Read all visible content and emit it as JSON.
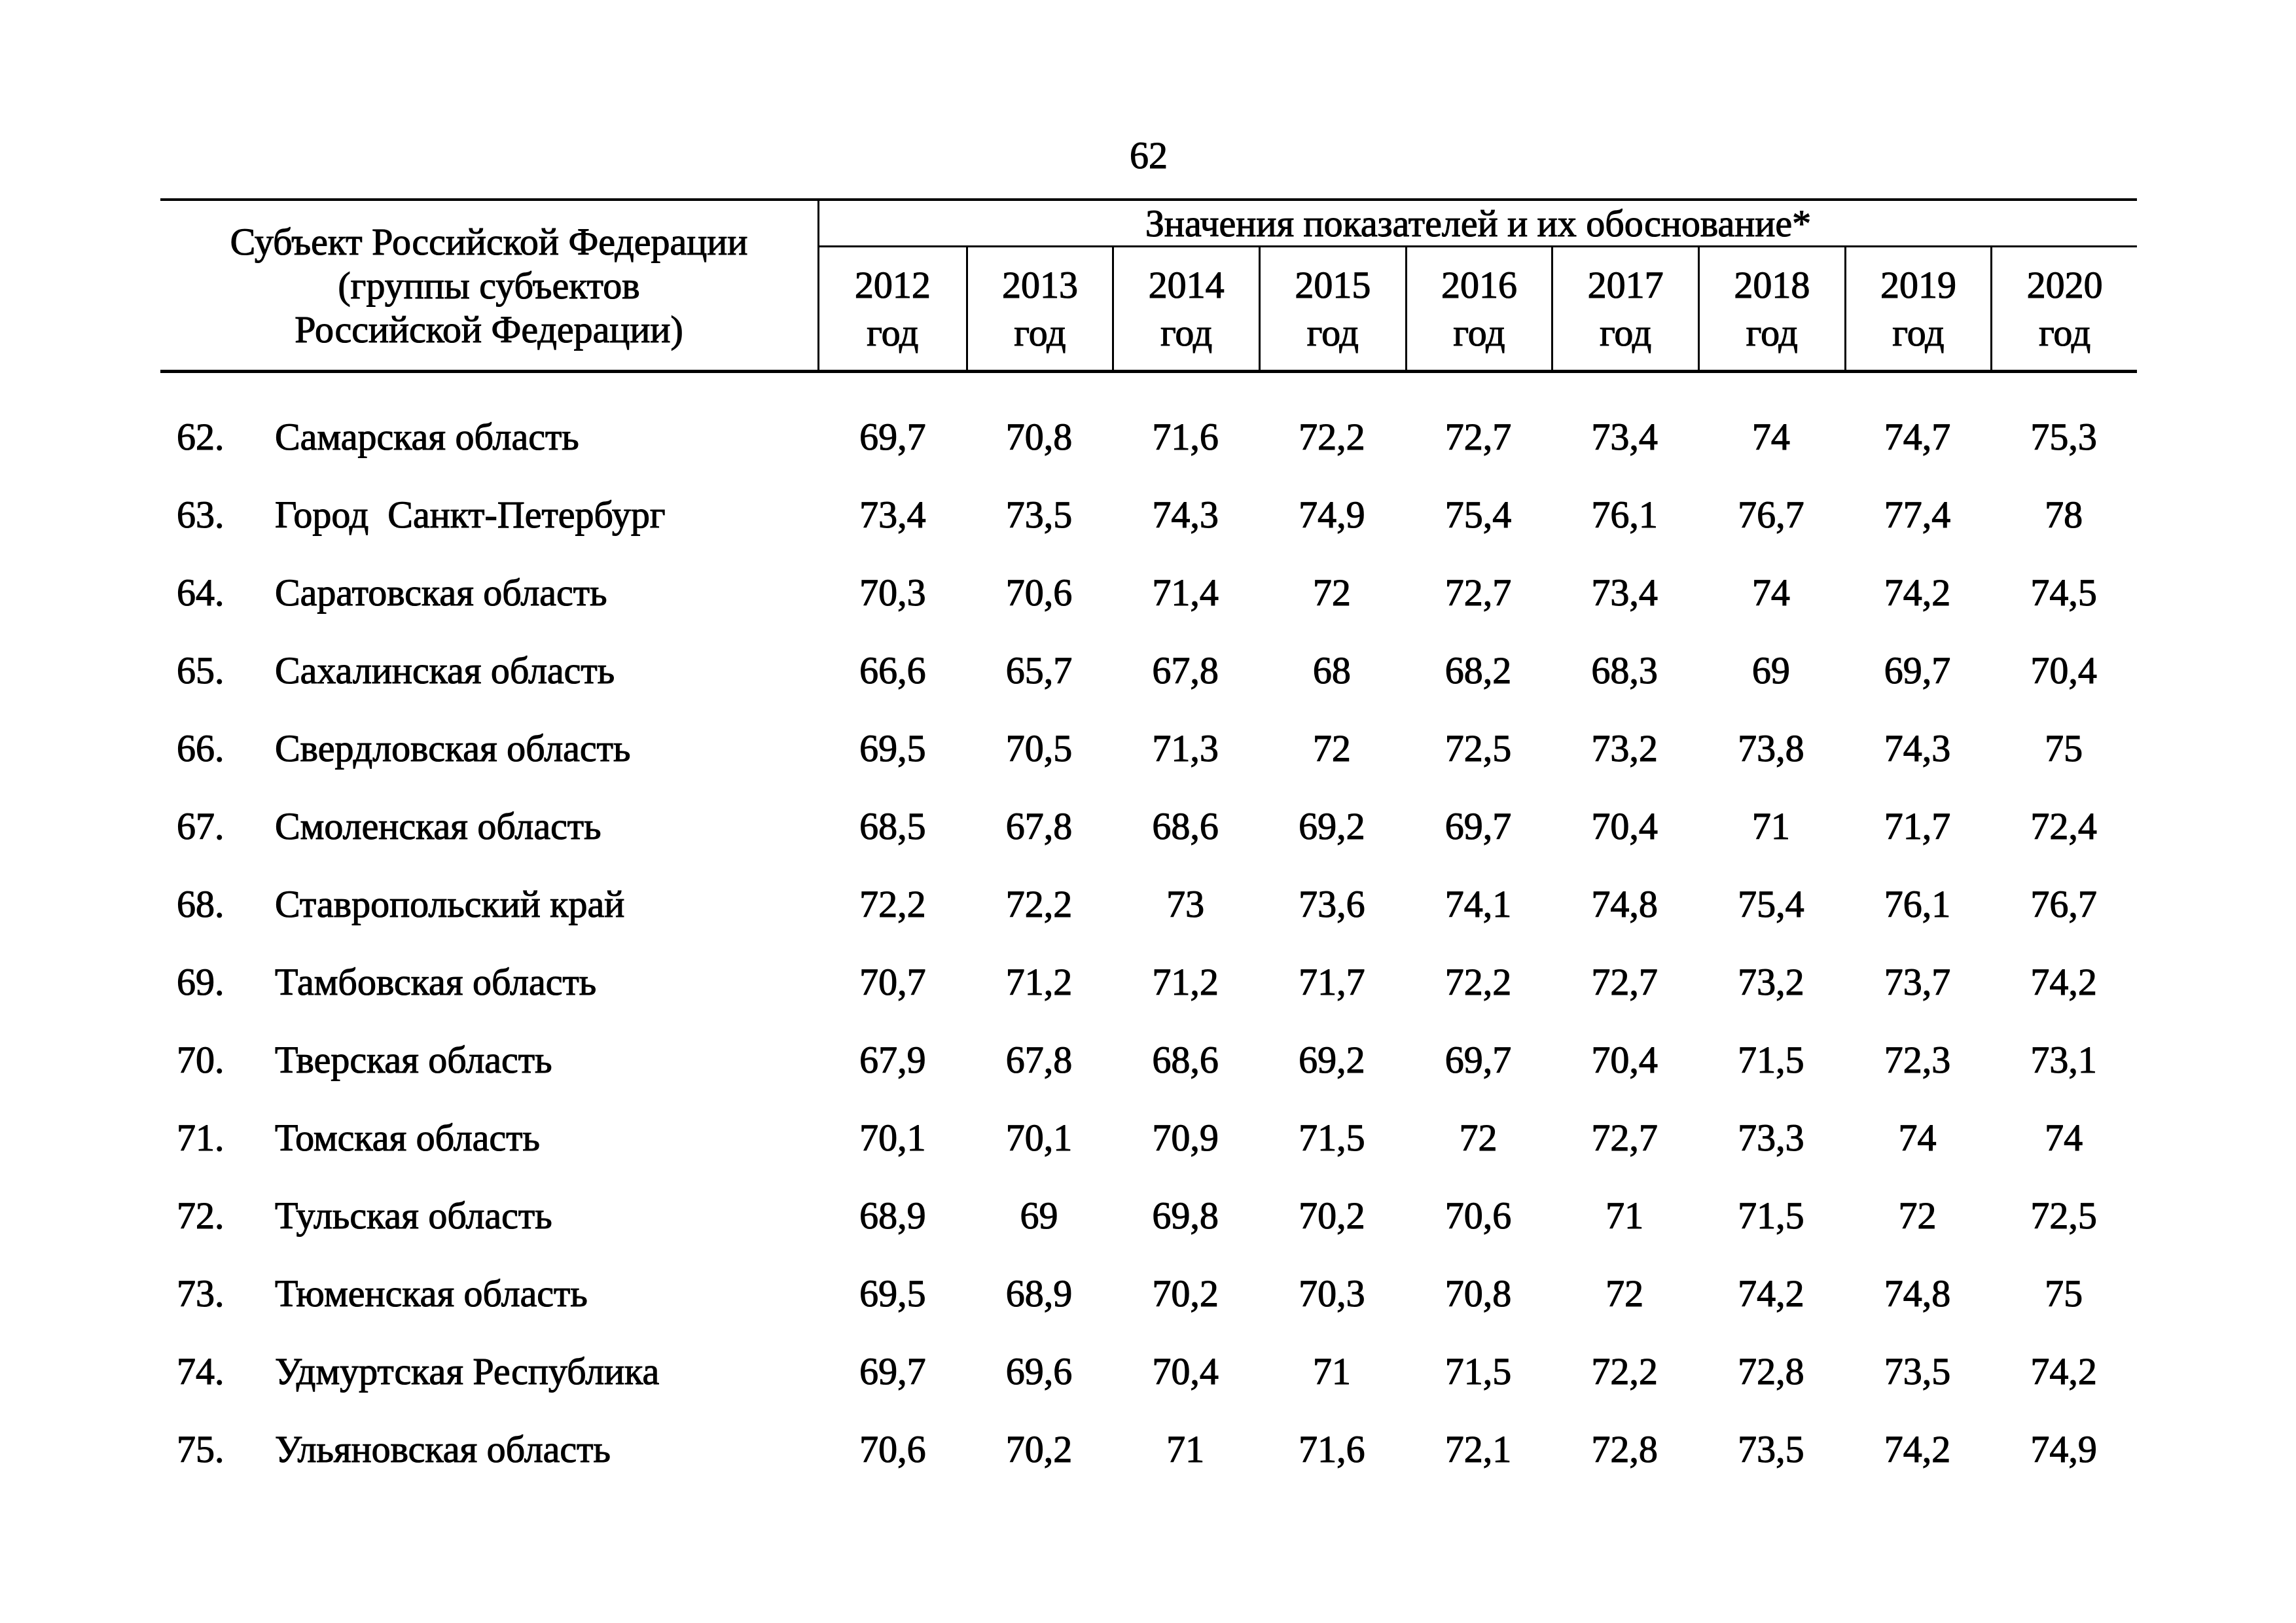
{
  "page": {
    "number": "62"
  },
  "table": {
    "header": {
      "subject_lines": [
        "Субъект Российской Федерации",
        "(группы субъектов",
        "Российской Федерации)"
      ],
      "values_span": "Значения показателей и их обоснование*",
      "year_suffix": "год",
      "years": [
        "2012",
        "2013",
        "2014",
        "2015",
        "2016",
        "2017",
        "2018",
        "2019",
        "2020"
      ]
    },
    "rows": [
      {
        "num": "62.",
        "name": "Самарская область",
        "values": [
          "69,7",
          "70,8",
          "71,6",
          "72,2",
          "72,7",
          "73,4",
          "74",
          "74,7",
          "75,3"
        ]
      },
      {
        "num": "63.",
        "name": "Город  Санкт-Петербург",
        "values": [
          "73,4",
          "73,5",
          "74,3",
          "74,9",
          "75,4",
          "76,1",
          "76,7",
          "77,4",
          "78"
        ]
      },
      {
        "num": "64.",
        "name": "Саратовская область",
        "values": [
          "70,3",
          "70,6",
          "71,4",
          "72",
          "72,7",
          "73,4",
          "74",
          "74,2",
          "74,5"
        ]
      },
      {
        "num": "65.",
        "name": "Сахалинская область",
        "values": [
          "66,6",
          "65,7",
          "67,8",
          "68",
          "68,2",
          "68,3",
          "69",
          "69,7",
          "70,4"
        ]
      },
      {
        "num": "66.",
        "name": "Свердловская область",
        "values": [
          "69,5",
          "70,5",
          "71,3",
          "72",
          "72,5",
          "73,2",
          "73,8",
          "74,3",
          "75"
        ]
      },
      {
        "num": "67.",
        "name": "Смоленская область",
        "values": [
          "68,5",
          "67,8",
          "68,6",
          "69,2",
          "69,7",
          "70,4",
          "71",
          "71,7",
          "72,4"
        ]
      },
      {
        "num": "68.",
        "name": "Ставропольский край",
        "values": [
          "72,2",
          "72,2",
          "73",
          "73,6",
          "74,1",
          "74,8",
          "75,4",
          "76,1",
          "76,7"
        ]
      },
      {
        "num": "69.",
        "name": "Тамбовская область",
        "values": [
          "70,7",
          "71,2",
          "71,2",
          "71,7",
          "72,2",
          "72,7",
          "73,2",
          "73,7",
          "74,2"
        ]
      },
      {
        "num": "70.",
        "name": "Тверская область",
        "values": [
          "67,9",
          "67,8",
          "68,6",
          "69,2",
          "69,7",
          "70,4",
          "71,5",
          "72,3",
          "73,1"
        ]
      },
      {
        "num": "71.",
        "name": "Томская область",
        "values": [
          "70,1",
          "70,1",
          "70,9",
          "71,5",
          "72",
          "72,7",
          "73,3",
          "74",
          "74"
        ]
      },
      {
        "num": "72.",
        "name": "Тульская область",
        "values": [
          "68,9",
          "69",
          "69,8",
          "70,2",
          "70,6",
          "71",
          "71,5",
          "72",
          "72,5"
        ]
      },
      {
        "num": "73.",
        "name": "Тюменская область",
        "values": [
          "69,5",
          "68,9",
          "70,2",
          "70,3",
          "70,8",
          "72",
          "74,2",
          "74,8",
          "75"
        ]
      },
      {
        "num": "74.",
        "name": "Удмуртская Республика",
        "values": [
          "69,7",
          "69,6",
          "70,4",
          "71",
          "71,5",
          "72,2",
          "72,8",
          "73,5",
          "74,2"
        ]
      },
      {
        "num": "75.",
        "name": "Ульяновская область",
        "values": [
          "70,6",
          "70,2",
          "71",
          "71,6",
          "72,1",
          "72,8",
          "73,5",
          "74,2",
          "74,9"
        ]
      }
    ]
  }
}
